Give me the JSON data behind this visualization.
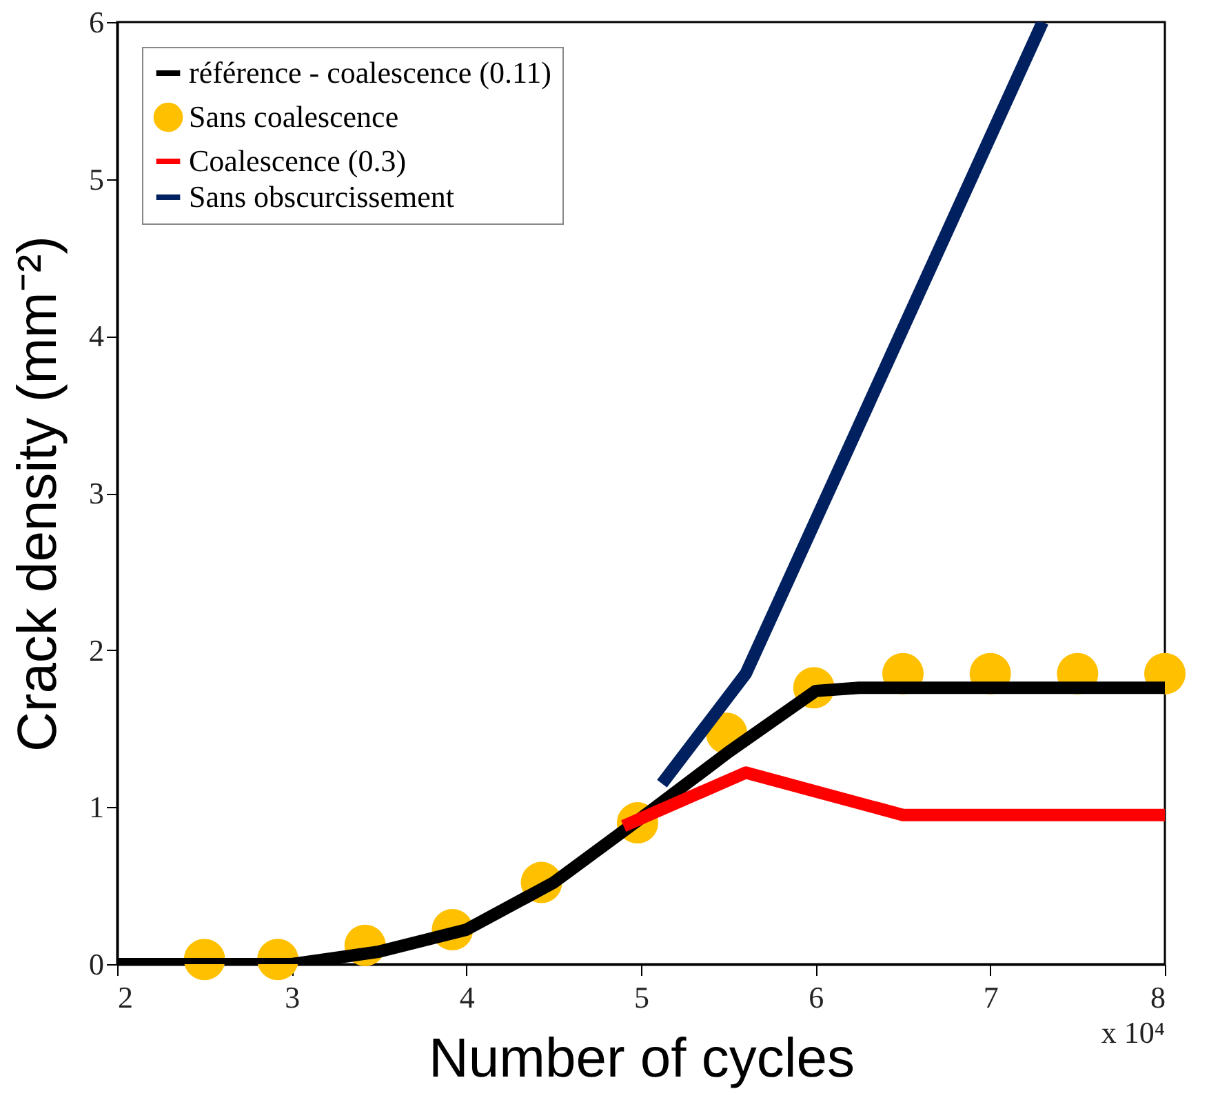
{
  "chart_data": {
    "type": "line",
    "xlabel": "Number of cycles",
    "ylabel": "Crack density (mm⁻²)",
    "annotations": [
      "x 10⁴"
    ],
    "xlim": [
      2,
      8
    ],
    "xticks": [
      2,
      3,
      4,
      5,
      6,
      7,
      8
    ],
    "ylim": [
      0,
      6
    ],
    "yticks": [
      0,
      1,
      2,
      3,
      4,
      5,
      6
    ],
    "grid": false,
    "legend": "top left",
    "series": [
      {
        "name": "référence - coalescence (0.11)",
        "color": "#000000",
        "x": [
          2,
          3,
          3.5,
          4,
          4.5,
          5,
          5.5,
          6,
          6.25,
          8
        ],
        "values": [
          0,
          0,
          0.08,
          0.22,
          0.52,
          0.93,
          1.35,
          1.74,
          1.76,
          1.76
        ]
      },
      {
        "name": "Sans coalescence",
        "type": "scatter",
        "marker": "circle",
        "color": "#ffc000",
        "x": [
          2.5,
          2.92,
          3.42,
          3.92,
          4.43,
          4.98,
          5.49,
          5.99,
          6.5,
          7.0,
          7.5,
          8.0
        ],
        "values": [
          0.03,
          0.03,
          0.12,
          0.22,
          0.52,
          0.9,
          1.47,
          1.76,
          1.85,
          1.85,
          1.85,
          1.85
        ]
      },
      {
        "name": "Coalescence (0.3)",
        "color": "#ff0000",
        "x": [
          4.9,
          5.6,
          6.5,
          8
        ],
        "values": [
          0.88,
          1.22,
          0.95,
          0.95
        ]
      },
      {
        "name": "Sans obscurcissement",
        "color": "#002060",
        "x": [
          5.12,
          5.6,
          7.3
        ],
        "values": [
          1.15,
          1.85,
          6.0
        ]
      }
    ]
  }
}
